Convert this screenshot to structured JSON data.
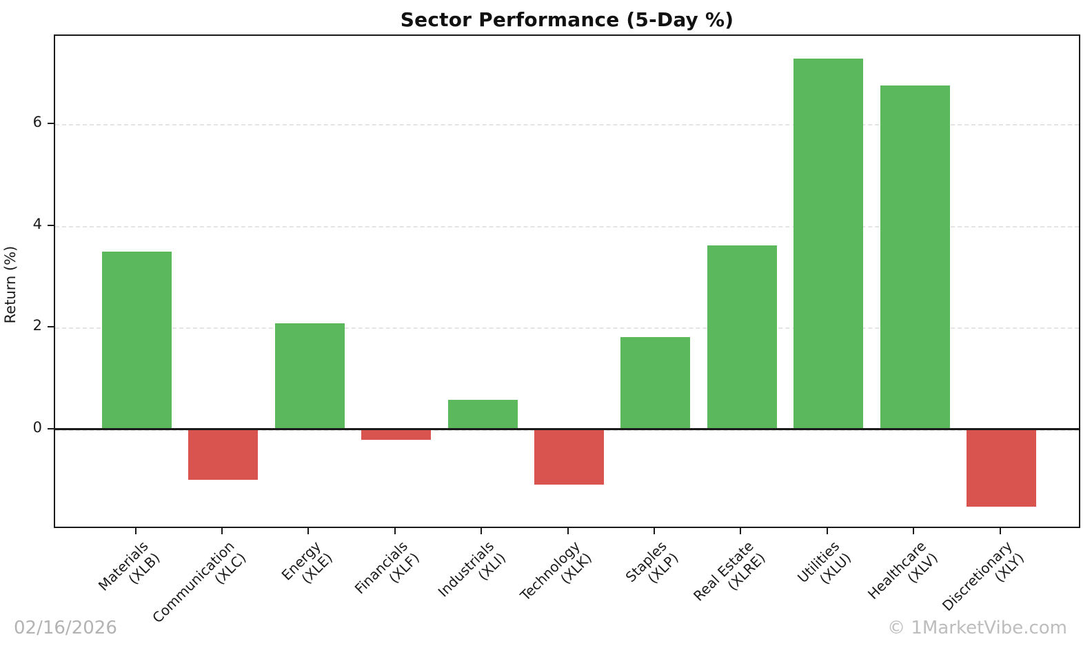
{
  "title": "Sector Performance (5-Day %)",
  "footer": {
    "date": "02/16/2026",
    "watermark": "© 1MarketVibe.com"
  },
  "colors": {
    "positive_bar": "#5cb85c",
    "negative_bar": "#d9534f",
    "gridline": "#e4e4e4",
    "axis": "#1a1a1a",
    "footer_text": "#b3b3b3"
  },
  "chart_data": {
    "type": "bar",
    "title": "Sector Performance (5-Day %)",
    "xlabel": "",
    "ylabel": "Return (%)",
    "ylim": [
      -1.95,
      7.75
    ],
    "yticks": [
      0,
      2,
      4,
      6
    ],
    "grid": "horizontal dashed",
    "legend": "none",
    "color_rule": "green if positive, red if negative",
    "points": [
      {
        "sector": "Materials",
        "ticker": "(XLB)",
        "value": 3.48
      },
      {
        "sector": "Communication",
        "ticker": "(XLC)",
        "value": -1.0
      },
      {
        "sector": "Energy",
        "ticker": "(XLE)",
        "value": 2.08
      },
      {
        "sector": "Financials",
        "ticker": "(XLF)",
        "value": -0.22
      },
      {
        "sector": "Industrials",
        "ticker": "(XLI)",
        "value": 0.57
      },
      {
        "sector": "Technology",
        "ticker": "(XLK)",
        "value": -1.09
      },
      {
        "sector": "Staples",
        "ticker": "(XLP)",
        "value": 1.8
      },
      {
        "sector": "Real Estate",
        "ticker": "(XLRE)",
        "value": 3.61
      },
      {
        "sector": "Utilities",
        "ticker": "(XLU)",
        "value": 7.28
      },
      {
        "sector": "Healthcare",
        "ticker": "(XLV)",
        "value": 6.75
      },
      {
        "sector": "Discretionary",
        "ticker": "(XLY)",
        "value": -1.53
      }
    ]
  }
}
